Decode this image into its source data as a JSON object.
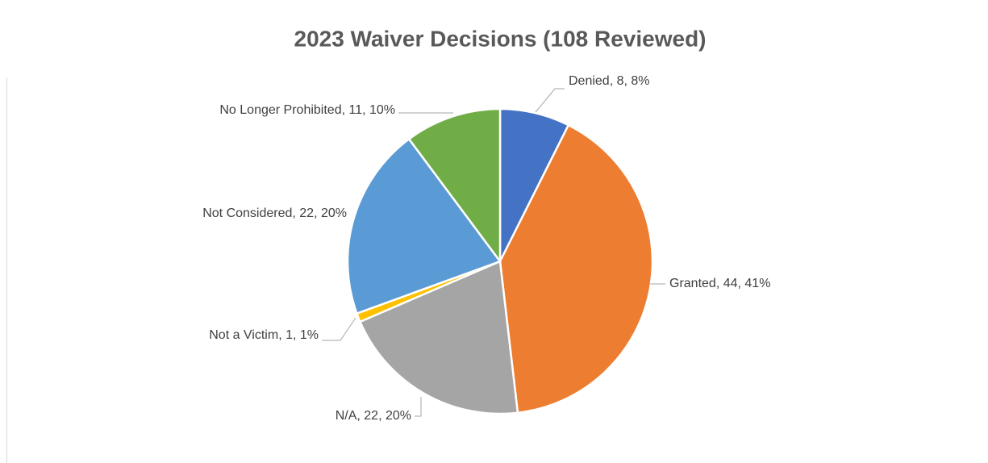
{
  "chart_data": {
    "type": "pie",
    "title": "2023 Waiver Decisions (108 Reviewed)",
    "categories": [
      "Denied",
      "Granted",
      "N/A",
      "Not a Victim",
      "Not Considered",
      "No Longer Prohibited"
    ],
    "values": [
      8,
      44,
      22,
      1,
      22,
      11
    ],
    "value_labels": [
      "Denied, 8, 8%",
      "Granted, 44, 41%",
      "N/A, 22, 20%",
      "Not a Victim, 1, 1%",
      "Not Considered, 22, 20%",
      "No Longer Prohibited, 11, 10%"
    ],
    "colors": [
      "#4472c4",
      "#ed7d31",
      "#a5a5a5",
      "#ffc000",
      "#5b9bd5",
      "#70ad47"
    ]
  }
}
